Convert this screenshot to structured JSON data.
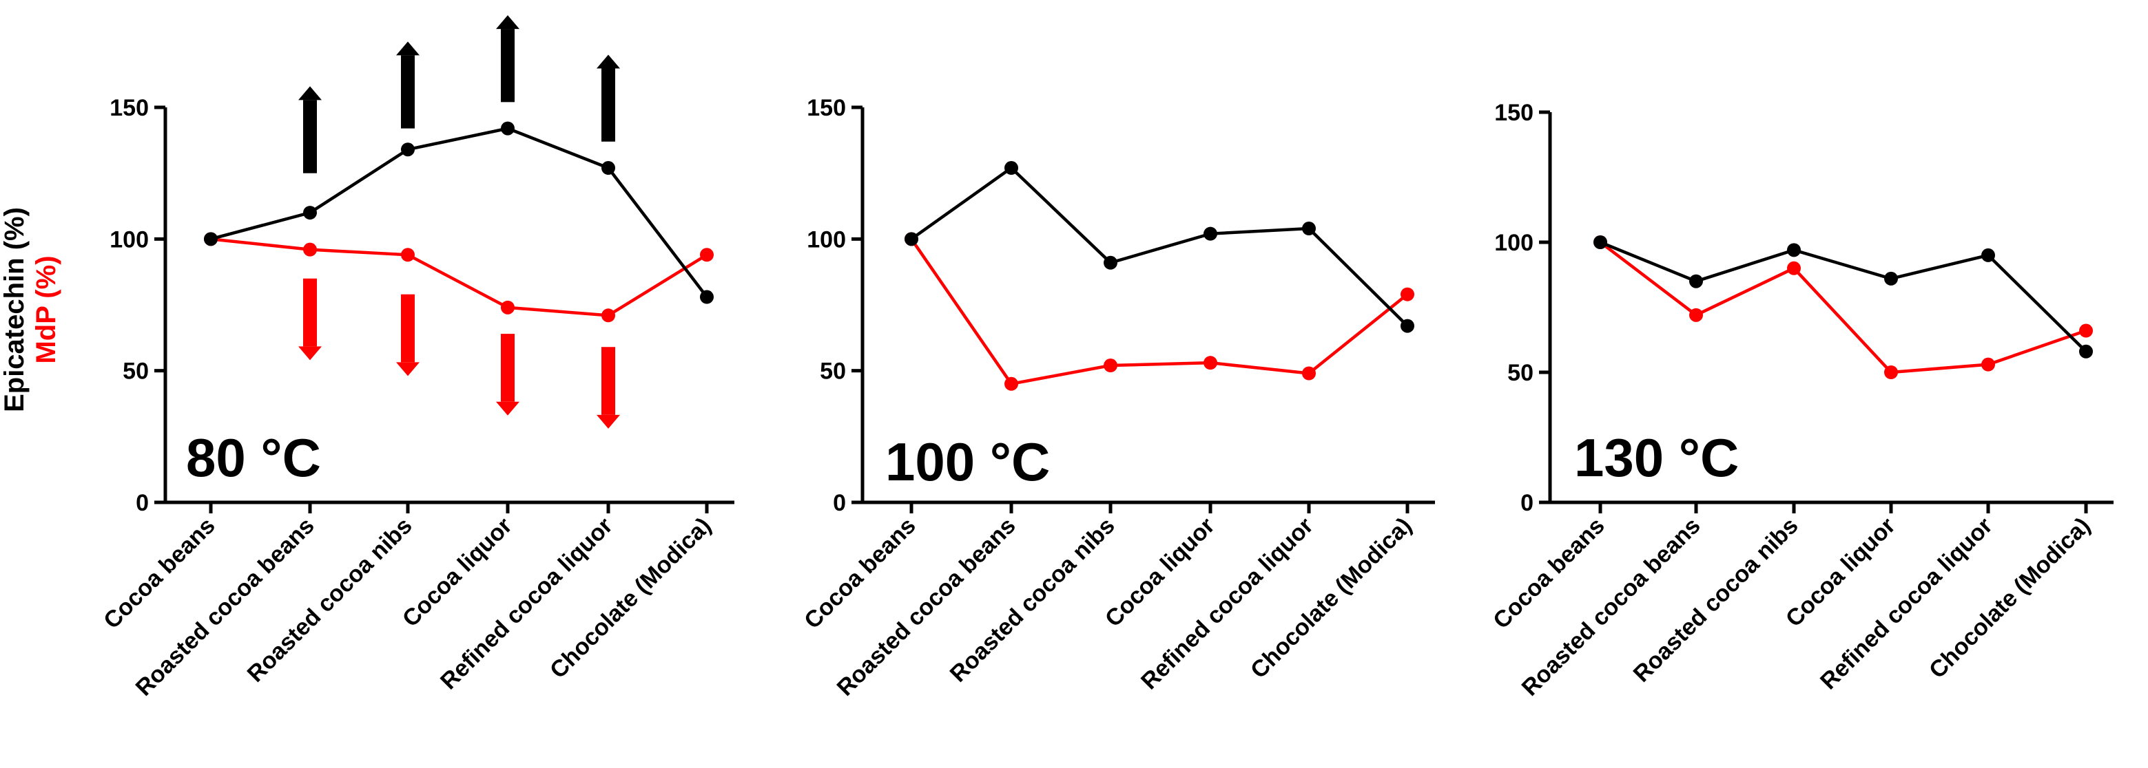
{
  "chart_data": [
    {
      "type": "line",
      "title": "80 °C",
      "ylabel_parts": [
        "Epicatechin (%)",
        "MdP (%)"
      ],
      "categories": [
        "Cocoa beans",
        "Roasted cocoa beans",
        "Roasted cocoa nibs",
        "Cocoa liquor",
        "Refined cocoa liquor",
        "Chocolate (Modica)"
      ],
      "ylim": [
        0,
        150
      ],
      "yticks": [
        0,
        50,
        100,
        150
      ],
      "series": [
        {
          "name": "Epicatechin",
          "color": "#000000",
          "values": [
            100,
            110,
            134,
            142,
            127,
            78
          ]
        },
        {
          "name": "MdP",
          "color": "#ff0000",
          "values": [
            100,
            96,
            94,
            74,
            71,
            94
          ]
        }
      ],
      "arrows": [
        {
          "category": 1,
          "direction": "up",
          "color": "#000000",
          "from": 125,
          "to": 158
        },
        {
          "category": 2,
          "direction": "up",
          "color": "#000000",
          "from": 142,
          "to": 175
        },
        {
          "category": 3,
          "direction": "up",
          "color": "#000000",
          "from": 152,
          "to": 185
        },
        {
          "category": 4,
          "direction": "up",
          "color": "#000000",
          "from": 137,
          "to": 170
        },
        {
          "category": 1,
          "direction": "down",
          "color": "#ff0000",
          "from": 85,
          "to": 54
        },
        {
          "category": 2,
          "direction": "down",
          "color": "#ff0000",
          "from": 79,
          "to": 48
        },
        {
          "category": 3,
          "direction": "down",
          "color": "#ff0000",
          "from": 64,
          "to": 33
        },
        {
          "category": 4,
          "direction": "down",
          "color": "#ff0000",
          "from": 59,
          "to": 28
        }
      ]
    },
    {
      "type": "line",
      "title": "100 °C",
      "categories": [
        "Cocoa beans",
        "Roasted cocoa beans",
        "Roasted cocoa nibs",
        "Cocoa liquor",
        "Refined cocoa liquor",
        "Chocolate (Modica)"
      ],
      "ylim": [
        0,
        150
      ],
      "yticks": [
        0,
        50,
        100,
        150
      ],
      "series": [
        {
          "name": "Epicatechin",
          "color": "#000000",
          "values": [
            100,
            127,
            91,
            102,
            104,
            67
          ]
        },
        {
          "name": "MdP",
          "color": "#ff0000",
          "values": [
            100,
            45,
            52,
            53,
            49,
            79
          ]
        }
      ]
    },
    {
      "type": "line",
      "title": "130 °C",
      "categories": [
        "Cocoa beans",
        "Roasted cocoa beans",
        "Roasted cocoa nibs",
        "Cocoa liquor",
        "Refined cocoa liquor",
        "Chocolate (Modica)"
      ],
      "ylim": [
        0,
        150
      ],
      "yticks": [
        0,
        50,
        100,
        150
      ],
      "series": [
        {
          "name": "Epicatechin",
          "color": "#000000",
          "values": [
            100,
            85,
            97,
            86,
            95,
            58
          ]
        },
        {
          "name": "MdP",
          "color": "#ff0000",
          "values": [
            100,
            72,
            90,
            50,
            53,
            66
          ]
        }
      ]
    }
  ]
}
